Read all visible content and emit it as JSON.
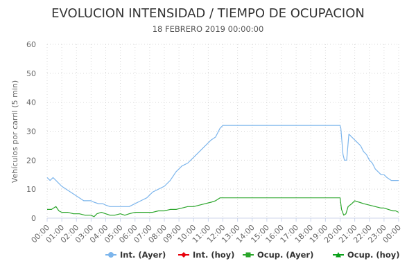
{
  "colors": {
    "int_ayer": "#7cb5ec",
    "int_hoy": "#e8000b",
    "ocup_ayer": "#2aa52a",
    "ocup_hoy": "#0ba01b",
    "grid": "#d8d8d8",
    "axis": "#ccd6eb"
  },
  "chart_data": {
    "type": "line",
    "title": "EVOLUCION INTENSIDAD / TIEMPO DE OCUPACION",
    "subtitle": "18 FEBRERO 2019 00:00:00",
    "ylabel": "Vehículos por carril (5 min)",
    "ylim": [
      0,
      60
    ],
    "yticks": [
      "0",
      "10",
      "20",
      "30",
      "40",
      "50",
      "60"
    ],
    "categories": [
      "00:00",
      "01:00",
      "02:00",
      "03:00",
      "04:00",
      "05:00",
      "06:00",
      "07:00",
      "08:00",
      "09:00",
      "10:00",
      "11:00",
      "12:00",
      "13:00",
      "14:00",
      "15:00",
      "16:00",
      "17:00",
      "18:00",
      "19:00",
      "20:00",
      "21:00",
      "22:00",
      "23:00",
      "00:00"
    ],
    "grid": true,
    "legend_position": "bottom-right",
    "series": [
      {
        "name": "Int. (Ayer)",
        "marker": "circle",
        "x": [
          0,
          0.2,
          0.4,
          0.6,
          0.8,
          1.0,
          1.3,
          1.6,
          1.9,
          2.2,
          2.5,
          2.8,
          3.0,
          3.2,
          3.5,
          3.8,
          4.0,
          4.3,
          4.6,
          5.0,
          5.3,
          5.6,
          6.0,
          6.4,
          6.8,
          7.2,
          7.6,
          8.0,
          8.4,
          8.8,
          9.2,
          9.6,
          10.0,
          10.4,
          10.8,
          11.2,
          11.5,
          11.8,
          12.0,
          14.0,
          16.0,
          18.0,
          20.0,
          20.05,
          20.2,
          20.3,
          20.45,
          20.6,
          20.8,
          21.0,
          21.2,
          21.4,
          21.6,
          21.8,
          22.0,
          22.2,
          22.4,
          22.6,
          22.8,
          23.0,
          23.2,
          23.5,
          23.8,
          24.0
        ],
        "values": [
          14,
          13,
          14,
          13,
          12,
          11,
          10,
          9,
          8,
          7,
          6,
          6,
          6,
          5.5,
          5,
          5,
          4.5,
          4,
          4,
          4,
          4,
          4,
          5,
          6,
          7,
          9,
          10,
          11,
          13,
          16,
          18,
          19,
          21,
          23,
          25,
          27,
          28,
          31,
          32,
          32,
          32,
          32,
          32,
          31,
          22,
          20,
          20,
          29,
          28,
          27,
          26,
          25,
          23,
          22,
          20,
          19,
          17,
          16,
          15,
          15,
          14,
          13,
          13,
          13
        ]
      },
      {
        "name": "Int. (hoy)",
        "marker": "diamond",
        "x": [],
        "values": []
      },
      {
        "name": "Ocup. (Ayer)",
        "marker": "square",
        "x": [
          0,
          0.3,
          0.6,
          0.8,
          1.0,
          1.4,
          1.8,
          2.2,
          2.6,
          3.0,
          3.2,
          3.4,
          3.7,
          4.0,
          4.3,
          4.6,
          5.0,
          5.3,
          5.6,
          6.0,
          6.4,
          6.8,
          7.2,
          7.6,
          8.0,
          8.4,
          8.8,
          9.2,
          9.6,
          10.0,
          10.4,
          10.8,
          11.2,
          11.5,
          11.8,
          12.0,
          14.0,
          16.0,
          18.0,
          20.0,
          20.1,
          20.25,
          20.4,
          20.55,
          20.8,
          21.0,
          21.3,
          21.6,
          22.0,
          22.4,
          22.8,
          23.0,
          23.3,
          23.6,
          23.8,
          24.0
        ],
        "values": [
          3,
          3,
          4,
          2.5,
          2,
          2,
          1.5,
          1.5,
          1,
          1,
          0.5,
          1.5,
          2,
          1.5,
          1,
          1,
          1.5,
          1,
          1.5,
          2,
          2,
          2,
          2,
          2.5,
          2.5,
          3,
          3,
          3.5,
          4,
          4,
          4.5,
          5,
          5.5,
          6,
          7,
          7,
          7,
          7,
          7,
          7,
          3,
          1,
          1.5,
          4,
          5,
          6,
          5.5,
          5,
          4.5,
          4,
          3.5,
          3.5,
          3,
          2.5,
          2.5,
          2
        ]
      },
      {
        "name": "Ocup. (hoy)",
        "marker": "triangle",
        "x": [],
        "values": []
      }
    ]
  }
}
